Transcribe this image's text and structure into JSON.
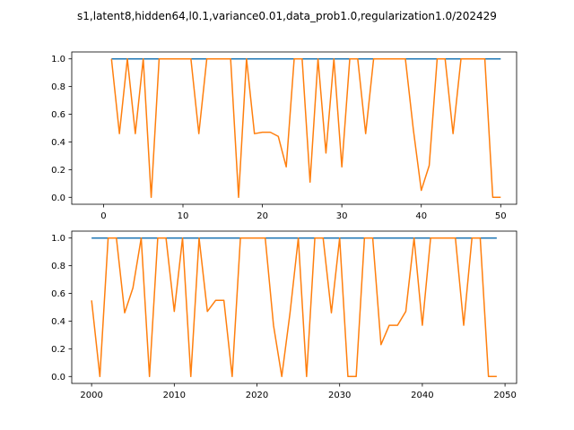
{
  "figure": {
    "title": "s1,latent8,hidden64,l0.1,variance0.01,data_prob1.0,regularization1.0/202429"
  },
  "colors": {
    "series1": "#1f77b4",
    "series2": "#ff7f0e"
  },
  "chart_data": [
    {
      "type": "line",
      "xlim": [
        -4.0,
        52.0
      ],
      "ylim": [
        -0.05,
        1.05
      ],
      "xticks": [
        0,
        10,
        20,
        30,
        40,
        50
      ],
      "yticks": [
        0.0,
        0.2,
        0.4,
        0.6,
        0.8,
        1.0
      ],
      "xtick_labels": [
        "0",
        "10",
        "20",
        "30",
        "40",
        "50"
      ],
      "ytick_labels": [
        "0.0",
        "0.2",
        "0.4",
        "0.6",
        "0.8",
        "1.0"
      ],
      "series": [
        {
          "x": [
            1,
            50
          ],
          "values": [
            1.0,
            1.0
          ]
        },
        {
          "x": [
            1,
            2,
            3,
            4,
            5,
            6,
            7,
            8,
            9,
            10,
            11,
            12,
            13,
            14,
            15,
            16,
            17,
            18,
            19,
            20,
            21,
            22,
            23,
            24,
            25,
            26,
            27,
            28,
            29,
            30,
            31,
            32,
            33,
            34,
            35,
            36,
            37,
            38,
            39,
            40,
            41,
            42,
            43,
            44,
            45,
            46,
            47,
            48,
            49,
            50
          ],
          "values": [
            1.0,
            0.46,
            1.0,
            0.46,
            1.0,
            0.0,
            1.0,
            1.0,
            1.0,
            1.0,
            1.0,
            0.46,
            1.0,
            1.0,
            1.0,
            1.0,
            0.0,
            1.0,
            0.46,
            0.47,
            0.47,
            0.44,
            0.22,
            1.0,
            1.0,
            0.11,
            1.0,
            0.32,
            1.0,
            0.22,
            1.0,
            1.0,
            0.46,
            1.0,
            1.0,
            1.0,
            1.0,
            1.0,
            0.49,
            0.05,
            0.23,
            1.0,
            1.0,
            0.46,
            1.0,
            1.0,
            1.0,
            1.0,
            0.0,
            0.0
          ]
        }
      ]
    },
    {
      "type": "line",
      "xlim": [
        1997.6,
        2051.4
      ],
      "ylim": [
        -0.05,
        1.05
      ],
      "xticks": [
        2000,
        2010,
        2020,
        2030,
        2040,
        2050
      ],
      "yticks": [
        0.0,
        0.2,
        0.4,
        0.6,
        0.8,
        1.0
      ],
      "xtick_labels": [
        "2000",
        "2010",
        "2020",
        "2030",
        "2040",
        "2050"
      ],
      "ytick_labels": [
        "0.0",
        "0.2",
        "0.4",
        "0.6",
        "0.8",
        "1.0"
      ],
      "series": [
        {
          "x": [
            2000,
            2049
          ],
          "values": [
            1.0,
            1.0
          ]
        },
        {
          "x": [
            2000,
            2001,
            2002,
            2003,
            2004,
            2005,
            2006,
            2007,
            2008,
            2009,
            2010,
            2011,
            2012,
            2013,
            2014,
            2015,
            2016,
            2017,
            2018,
            2019,
            2020,
            2021,
            2022,
            2023,
            2024,
            2025,
            2026,
            2027,
            2028,
            2029,
            2030,
            2031,
            2032,
            2033,
            2034,
            2035,
            2036,
            2037,
            2038,
            2039,
            2040,
            2041,
            2042,
            2043,
            2044,
            2045,
            2046,
            2047,
            2048,
            2049
          ],
          "values": [
            0.55,
            0.0,
            1.0,
            1.0,
            0.46,
            0.64,
            1.0,
            0.0,
            1.0,
            1.0,
            0.47,
            1.0,
            0.0,
            1.0,
            0.47,
            0.55,
            0.55,
            0.0,
            1.0,
            1.0,
            1.0,
            1.0,
            0.37,
            0.0,
            0.46,
            1.0,
            0.0,
            1.0,
            1.0,
            0.46,
            1.0,
            0.0,
            0.0,
            1.0,
            1.0,
            0.23,
            0.37,
            0.37,
            0.47,
            1.0,
            0.37,
            1.0,
            1.0,
            1.0,
            1.0,
            0.37,
            1.0,
            1.0,
            0.0,
            0.0
          ]
        }
      ]
    }
  ]
}
